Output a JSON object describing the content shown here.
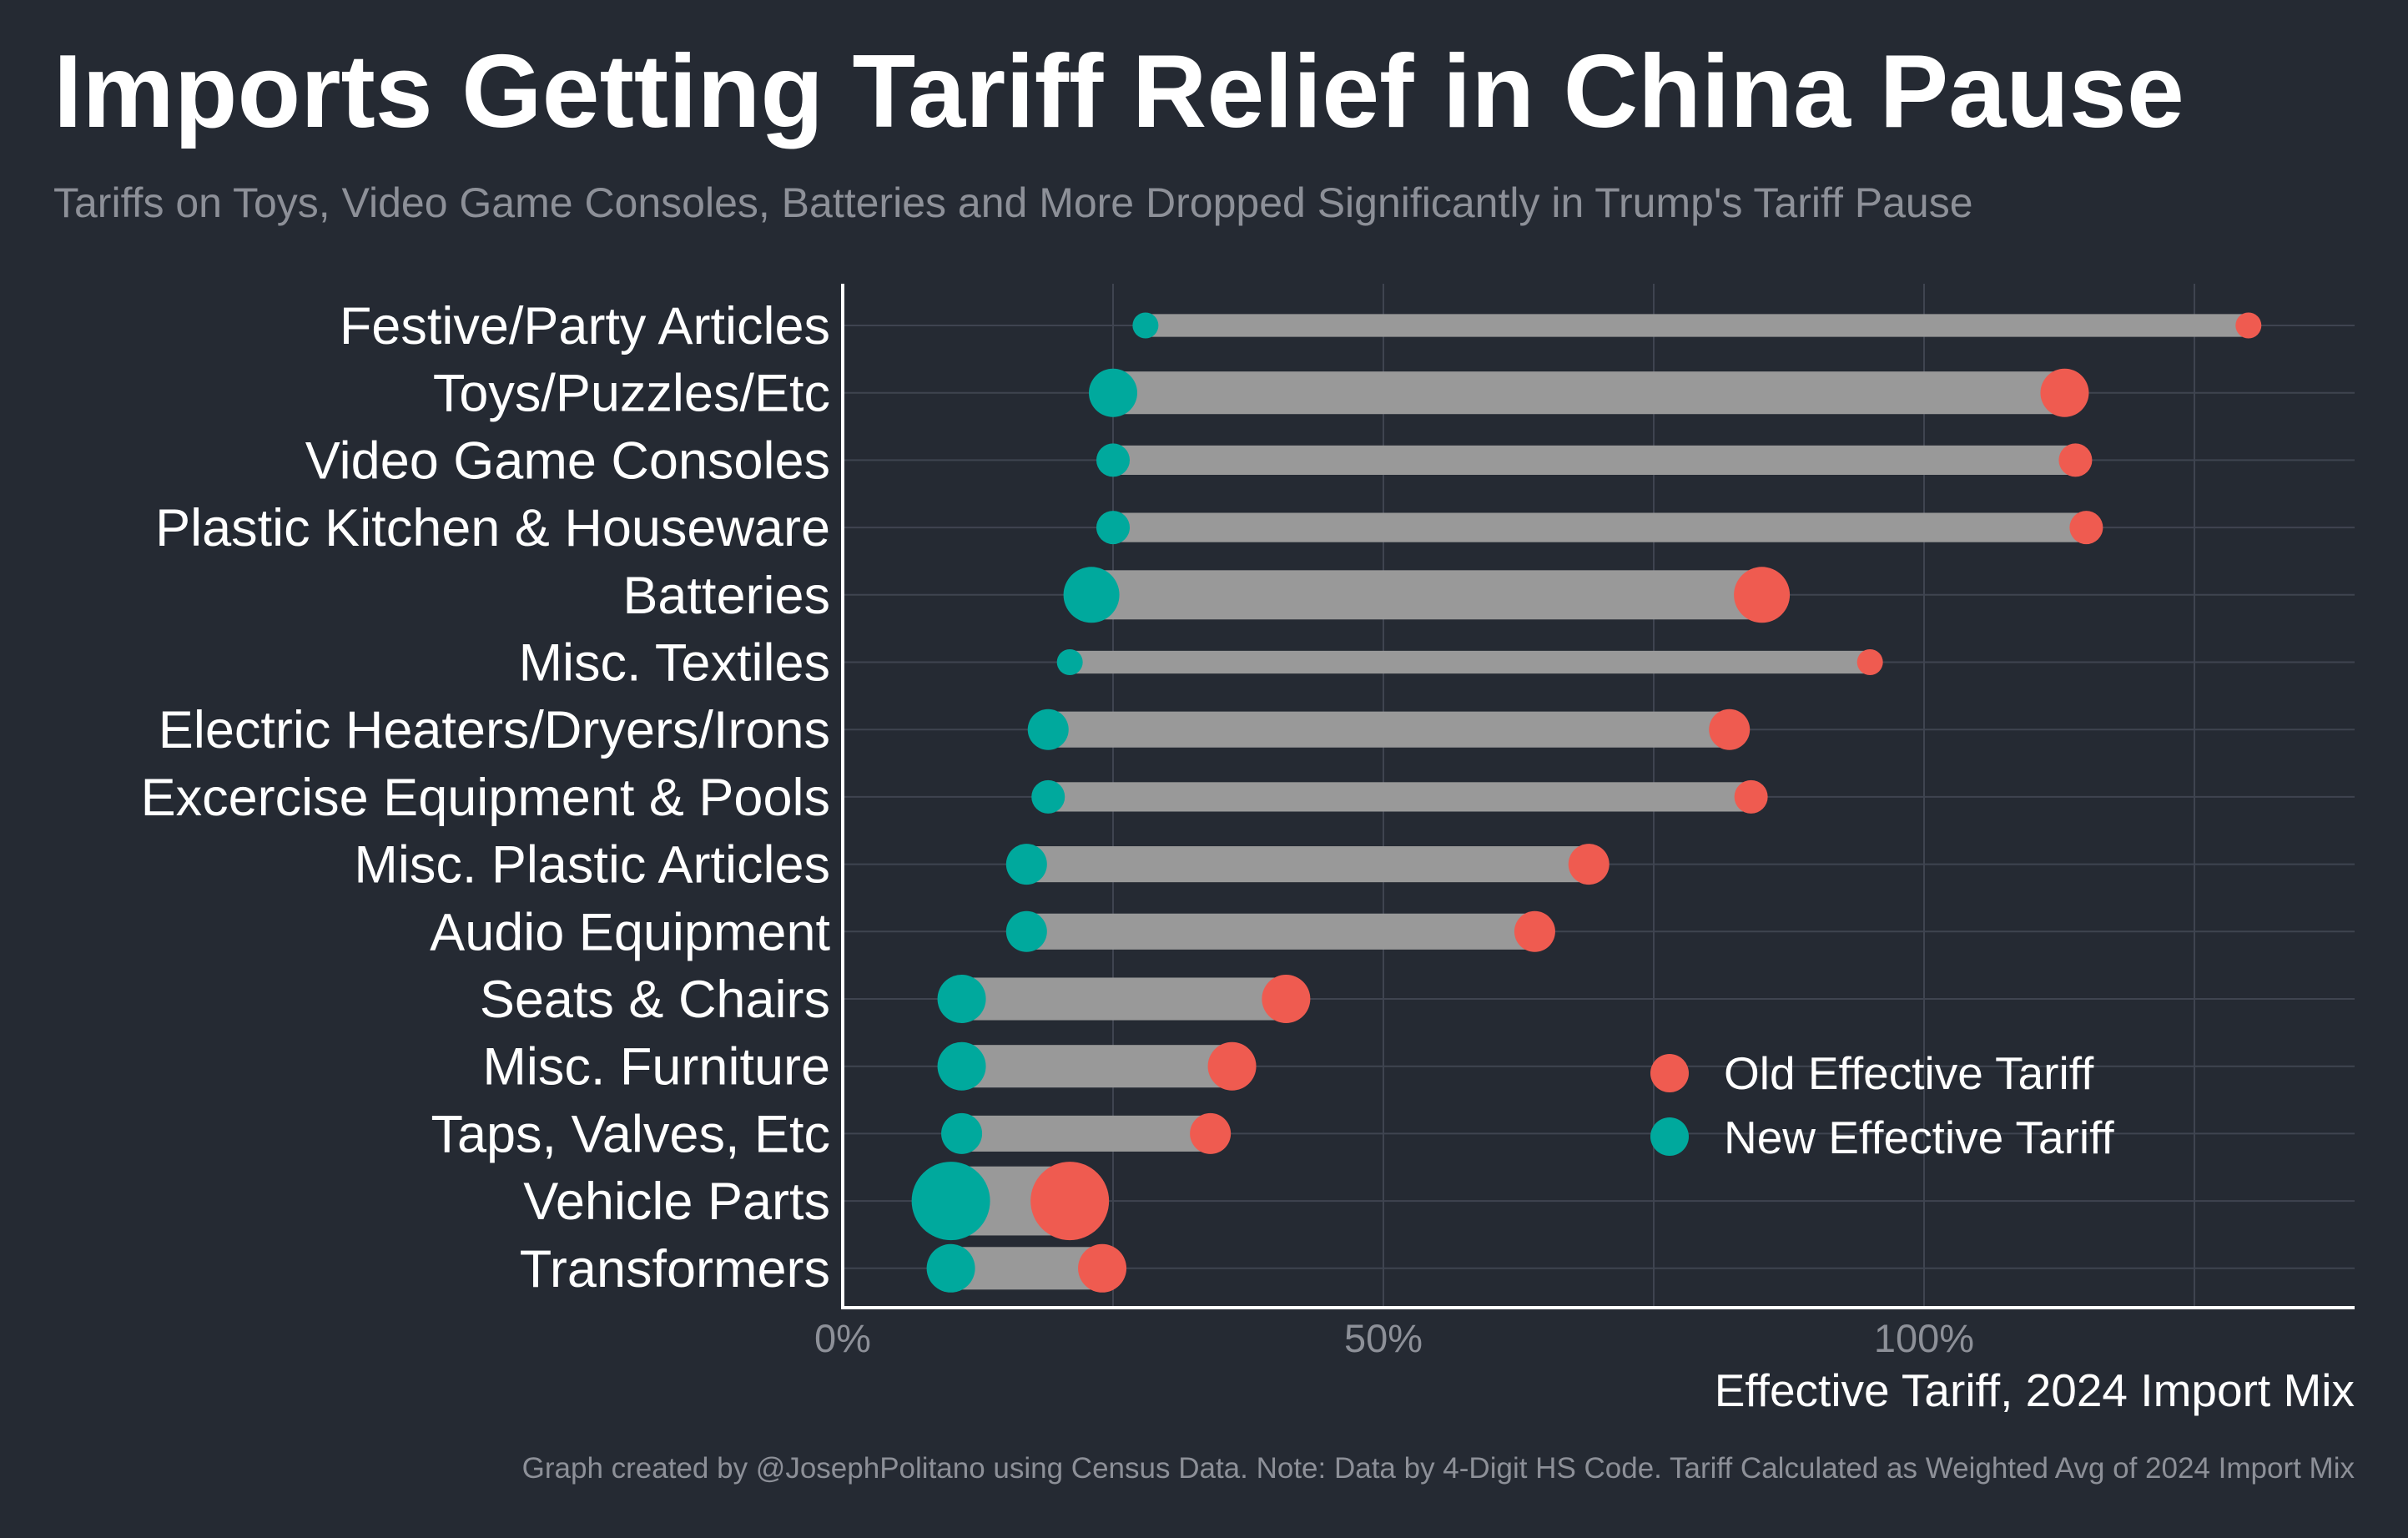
{
  "chart_data": {
    "type": "dumbbell",
    "title": "Imports Getting Tariff Relief in China Pause",
    "subtitle": "Tariffs on Toys, Video Game Consoles, Batteries and More Dropped Significantly in Trump's Tariff Pause",
    "xlabel": "Effective Tariff, 2024 Import Mix",
    "ylabel": "",
    "xlim": [
      0,
      140
    ],
    "x_ticks": [
      {
        "value": 0,
        "label": "0%"
      },
      {
        "value": 50,
        "label": "50%"
      },
      {
        "value": 100,
        "label": "100%"
      }
    ],
    "grid": true,
    "legend_position": "bottom-right",
    "series": [
      {
        "name": "Old Effective Tariff",
        "color": "#ef5b50"
      },
      {
        "name": "New Effective Tariff",
        "color": "#00a99d"
      }
    ],
    "bar_color": "#999999",
    "categories": [
      "Festive/Party Articles",
      "Toys/Puzzles/Etc",
      "Video Game Consoles",
      "Plastic Kitchen & Houseware",
      "Batteries",
      "Misc. Textiles",
      "Electric Heaters/Dryers/Irons",
      "Excercise Equipment & Pools",
      "Misc. Plastic Articles",
      "Audio Equipment",
      "Seats & Chairs",
      "Misc. Furniture",
      "Taps, Valves, Etc",
      "Vehicle Parts",
      "Transformers"
    ],
    "old_values": [
      130,
      113,
      114,
      115,
      85,
      95,
      82,
      84,
      69,
      64,
      41,
      36,
      34,
      21,
      24
    ],
    "new_values": [
      28,
      25,
      25,
      25,
      23,
      21,
      19,
      19,
      17,
      17,
      11,
      11,
      11,
      10,
      10
    ],
    "import_weight": [
      1,
      4,
      2,
      2,
      5,
      1,
      3,
      2,
      3,
      3,
      4,
      4,
      3,
      8,
      4
    ]
  },
  "caption": "Graph created by @JosephPolitano using Census Data. Note: Data by 4-Digit HS Code. Tariff Calculated as Weighted Avg of 2024 Import Mix"
}
